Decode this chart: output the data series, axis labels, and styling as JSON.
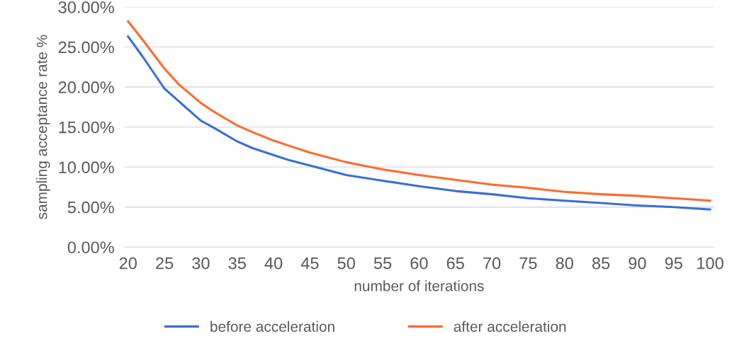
{
  "chart_data": {
    "type": "line",
    "xlabel": "number of iterations",
    "ylabel": "sampling acceptance rate %",
    "xlim": [
      19.5,
      100.5
    ],
    "xticks": [
      20,
      25,
      30,
      35,
      40,
      45,
      50,
      55,
      60,
      65,
      70,
      75,
      80,
      85,
      90,
      95,
      100
    ],
    "ylim": [
      0,
      30
    ],
    "yticks": [
      {
        "value": 0,
        "label": "0.00%"
      },
      {
        "value": 5,
        "label": "5.00%"
      },
      {
        "value": 10,
        "label": "10.00%"
      },
      {
        "value": 15,
        "label": "15.00%"
      },
      {
        "value": 20,
        "label": "20.00%"
      },
      {
        "value": 25,
        "label": "25.00%"
      },
      {
        "value": 30,
        "label": "30.00%"
      }
    ],
    "grid": "y",
    "legend": "bottom",
    "marker": "none",
    "line_style": "solid",
    "x": [
      20,
      22,
      25,
      27,
      30,
      32,
      35,
      37,
      40,
      42,
      45,
      50,
      55,
      60,
      65,
      70,
      75,
      80,
      85,
      90,
      95,
      100
    ],
    "series": [
      {
        "name": "before acceleration",
        "color": "#3a6fd0",
        "values": [
          26.3,
          23.8,
          19.8,
          18.2,
          15.8,
          14.8,
          13.2,
          12.4,
          11.5,
          10.9,
          10.2,
          9.0,
          8.3,
          7.6,
          7.0,
          6.6,
          6.1,
          5.8,
          5.5,
          5.2,
          5.0,
          4.7
        ]
      },
      {
        "name": "after acceleration",
        "color": "#ff6a30",
        "values": [
          28.2,
          25.9,
          22.3,
          20.3,
          18.0,
          16.8,
          15.2,
          14.4,
          13.3,
          12.7,
          11.8,
          10.6,
          9.7,
          9.0,
          8.4,
          7.8,
          7.4,
          6.9,
          6.6,
          6.4,
          6.1,
          5.8
        ]
      }
    ]
  }
}
